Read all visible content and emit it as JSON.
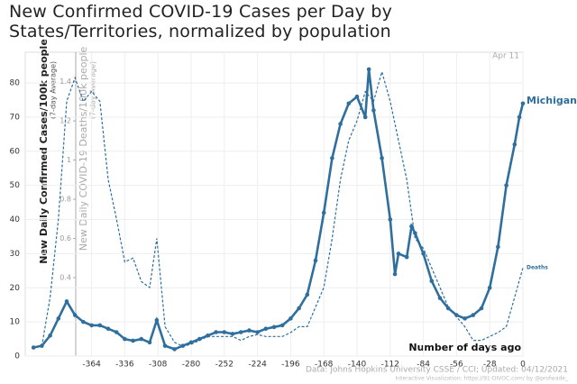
{
  "chart_data": {
    "type": "line",
    "title": "New Confirmed COVID-19 Cases per Day by States/Territories, normalized by population",
    "y_label": "New Daily Confirmed Cases/100k people",
    "y_label_note": "(7-day Average)",
    "y2_label": "New Daily COVID-19 Deaths/100k people",
    "y2_label_note": "(7-day Average)",
    "x_label": "Number of days ago",
    "date_annotation": "Apr 11",
    "source": "Data: Johns Hopkins University CSSE / CCI; Updated: 04/12/2021",
    "credit": "Interactive Visualization: https://91-DIVOC.com/ by @profwade_",
    "xlim": [
      -420,
      0
    ],
    "xticks": [
      -364,
      -336,
      -308,
      -280,
      -252,
      -224,
      -196,
      -168,
      -140,
      -112,
      -84,
      -56,
      -28,
      0
    ],
    "ylim": [
      0,
      89
    ],
    "yticks": [
      0,
      10,
      20,
      30,
      40,
      50,
      60,
      70,
      80
    ],
    "y2lim": [
      0,
      1.55
    ],
    "y2ticks": [
      0.4,
      0.6,
      0.8,
      1,
      1.2,
      1.4
    ],
    "series": [
      {
        "name": "Michigan",
        "color": "#2e6f9e",
        "style": "solid",
        "markers": true,
        "x": [
          -413,
          -406,
          -399,
          -392,
          -385,
          -378,
          -371,
          -364,
          -357,
          -350,
          -343,
          -336,
          -329,
          -322,
          -315,
          -309,
          -302,
          -294,
          -287,
          -280,
          -273,
          -266,
          -259,
          -252,
          -245,
          -238,
          -231,
          -224,
          -217,
          -210,
          -203,
          -196,
          -189,
          -182,
          -175,
          -168,
          -161,
          -154,
          -147,
          -140,
          -133,
          -130,
          -126,
          -119,
          -112,
          -108,
          -105,
          -98,
          -94,
          -91,
          -84,
          -77,
          -70,
          -63,
          -56,
          -49,
          -42,
          -35,
          -28,
          -21,
          -14,
          -7,
          -3,
          0
        ],
        "values": [
          2.5,
          3,
          6,
          11,
          16,
          12,
          10,
          9,
          9,
          8,
          7,
          5,
          4.5,
          5,
          4,
          10.5,
          3,
          2,
          3,
          4,
          5,
          6,
          7,
          7,
          6.5,
          7,
          7.5,
          7,
          8,
          8.5,
          9,
          11,
          14,
          18,
          28,
          42,
          58,
          68,
          74,
          76,
          70,
          84,
          72,
          58,
          40,
          24,
          30,
          29,
          38,
          36,
          30,
          22,
          17,
          14,
          12,
          11,
          12,
          14,
          20,
          32,
          50,
          62,
          70,
          74
        ]
      },
      {
        "name": "Deaths",
        "color": "#2e6f9e",
        "style": "dashed",
        "markers": false,
        "axis": "y2",
        "x": [
          -406,
          -399,
          -392,
          -385,
          -378,
          -371,
          -364,
          -357,
          -350,
          -343,
          -336,
          -329,
          -322,
          -315,
          -309,
          -302,
          -294,
          -287,
          -280,
          -273,
          -266,
          -259,
          -252,
          -245,
          -238,
          -231,
          -224,
          -217,
          -210,
          -203,
          -196,
          -189,
          -182,
          -175,
          -168,
          -161,
          -154,
          -147,
          -140,
          -133,
          -126,
          -119,
          -112,
          -105,
          -98,
          -91,
          -84,
          -77,
          -70,
          -63,
          -56,
          -49,
          -42,
          -35,
          -28,
          -21,
          -14,
          -7,
          0
        ],
        "values": [
          0.05,
          0.3,
          0.7,
          1.3,
          1.42,
          1.3,
          1.35,
          1.3,
          0.9,
          0.7,
          0.48,
          0.5,
          0.38,
          0.35,
          0.6,
          0.15,
          0.07,
          0.05,
          0.06,
          0.08,
          0.1,
          0.1,
          0.1,
          0.1,
          0.08,
          0.1,
          0.11,
          0.1,
          0.1,
          0.1,
          0.12,
          0.15,
          0.15,
          0.25,
          0.35,
          0.6,
          0.9,
          1.1,
          1.2,
          1.35,
          1.3,
          1.45,
          1.3,
          1.1,
          0.9,
          0.6,
          0.55,
          0.45,
          0.35,
          0.25,
          0.2,
          0.15,
          0.08,
          0.08,
          0.1,
          0.12,
          0.15,
          0.3,
          0.45
        ]
      }
    ]
  }
}
